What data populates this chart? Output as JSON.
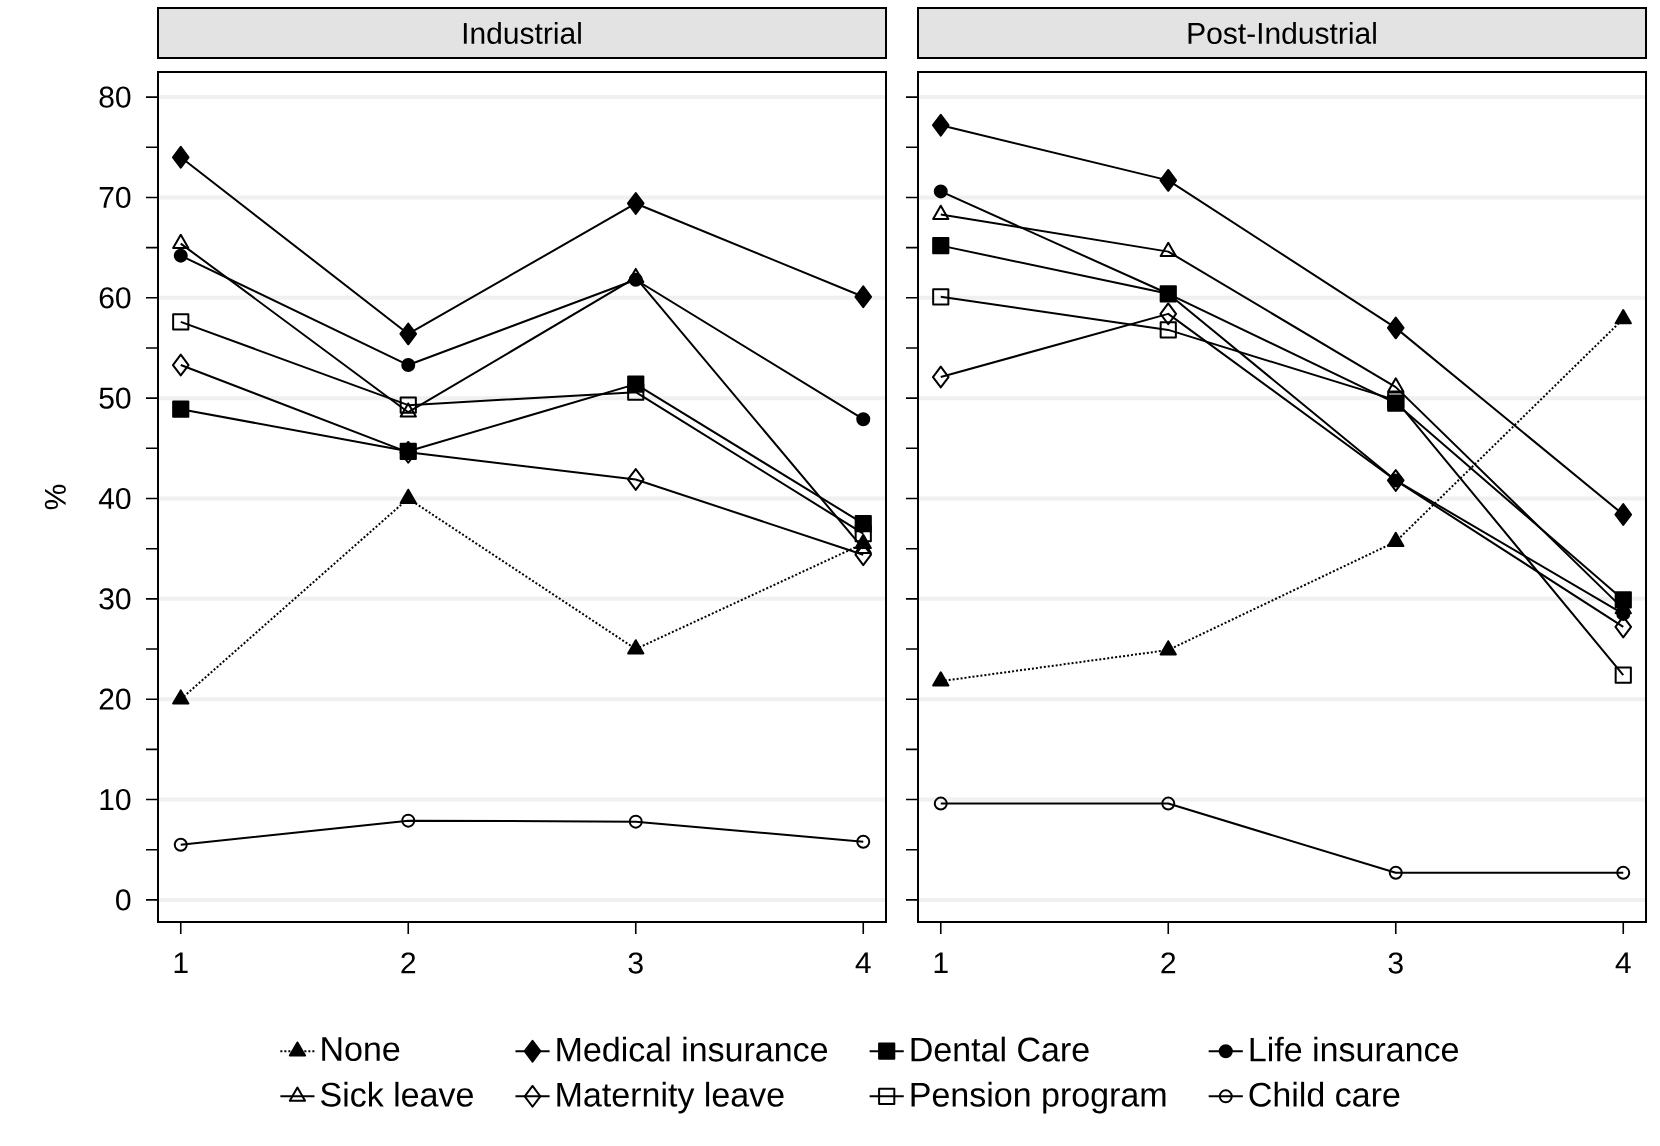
{
  "chart_data": [
    {
      "type": "line",
      "title": "Industrial",
      "ylabel": "%",
      "x": [
        1,
        2,
        3,
        4
      ],
      "xlim": [
        0.9,
        4.1
      ],
      "ylim": [
        -2.2,
        82.5
      ],
      "xticks": [
        1,
        2,
        3,
        4
      ],
      "yticks": [
        0,
        10,
        20,
        30,
        40,
        50,
        60,
        70,
        80
      ],
      "grid": "y",
      "legend": "bottom",
      "series": [
        {
          "name": "None",
          "color": "#000000",
          "marker": "triangle",
          "line_style": "dotted",
          "values": [
            20,
            40,
            25,
            35.5
          ]
        },
        {
          "name": "Medical insurance",
          "color": "#000000",
          "marker": "diamond",
          "line_style": "solid",
          "values": [
            74,
            56.4,
            69.4,
            60.1
          ]
        },
        {
          "name": "Dental Care",
          "color": "#000000",
          "marker": "square",
          "line_style": "solid",
          "values": [
            48.9,
            44.7,
            51.4,
            37.5
          ]
        },
        {
          "name": "Life insurance",
          "color": "#000000",
          "marker": "circle",
          "line_style": "solid",
          "values": [
            64.2,
            53.3,
            61.8,
            47.9
          ]
        },
        {
          "name": "Sick leave",
          "color": "#000000",
          "marker": "triangle",
          "line_style": "solid",
          "values": [
            65.4,
            48.6,
            62,
            35
          ]
        },
        {
          "name": "Maternity leave",
          "color": "#000000",
          "marker": "diamond",
          "line_style": "solid",
          "values": [
            53.3,
            44.6,
            41.9,
            34.4
          ]
        },
        {
          "name": "Pension program",
          "color": "#000000",
          "marker": "square",
          "line_style": "solid",
          "values": [
            57.6,
            49.3,
            50.6,
            36.5
          ]
        },
        {
          "name": "Child care",
          "color": "#000000",
          "marker": "circle",
          "line_style": "solid",
          "values": [
            5.5,
            7.9,
            7.8,
            5.8
          ]
        }
      ]
    },
    {
      "type": "line",
      "title": "Post-Industrial",
      "x": [
        1,
        2,
        3,
        4
      ],
      "xlim": [
        0.9,
        4.1
      ],
      "ylim": [
        -2.2,
        82.5
      ],
      "xticks": [
        1,
        2,
        3,
        4
      ],
      "yticks": [
        0,
        10,
        20,
        30,
        40,
        50,
        60,
        70,
        80
      ],
      "grid": "y",
      "tick_labels": "x",
      "series": [
        {
          "color": "#000000",
          "marker": "triangle",
          "line_style": "dotted",
          "values": [
            21.8,
            24.9,
            35.7,
            57.9
          ]
        },
        {
          "color": "#000000",
          "marker": "diamond",
          "line_style": "solid",
          "values": [
            77.2,
            71.7,
            57,
            38.4
          ]
        },
        {
          "color": "#000000",
          "marker": "square",
          "line_style": "solid",
          "values": [
            65.2,
            60.4,
            49.5,
            29.9
          ]
        },
        {
          "color": "#000000",
          "marker": "circle",
          "line_style": "solid",
          "values": [
            70.6,
            60.4,
            41.8,
            28.5
          ]
        },
        {
          "color": "#000000",
          "marker": "triangle",
          "line_style": "solid",
          "values": [
            68.3,
            64.6,
            51.1,
            29
          ]
        },
        {
          "color": "#000000",
          "marker": "diamond",
          "line_style": "solid",
          "values": [
            52.1,
            58.4,
            41.8,
            27.2
          ]
        },
        {
          "color": "#000000",
          "marker": "square",
          "line_style": "solid",
          "values": [
            60.1,
            56.8,
            49.8,
            22.4
          ]
        },
        {
          "color": "#000000",
          "marker": "circle",
          "line_style": "solid",
          "values": [
            9.6,
            9.6,
            2.7,
            2.7
          ]
        }
      ]
    }
  ]
}
